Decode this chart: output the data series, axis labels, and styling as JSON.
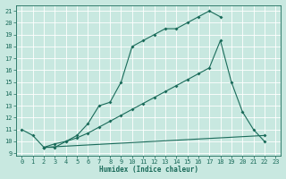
{
  "background_color": "#c8e8e0",
  "grid_color": "#b0d8d0",
  "line_color": "#1a6b5a",
  "xlabel": "Humidex (Indice chaleur)",
  "xlim": [
    -0.5,
    23.5
  ],
  "ylim": [
    8.8,
    21.5
  ],
  "yticks": [
    9,
    10,
    11,
    12,
    13,
    14,
    15,
    16,
    17,
    18,
    19,
    20,
    21
  ],
  "xticks": [
    0,
    1,
    2,
    3,
    4,
    5,
    6,
    7,
    8,
    9,
    10,
    11,
    12,
    13,
    14,
    15,
    16,
    17,
    18,
    19,
    20,
    21,
    22,
    23
  ],
  "line1_x": [
    0,
    1,
    2,
    3,
    4,
    5,
    6,
    7,
    8,
    9,
    10,
    11,
    12,
    13,
    14,
    15,
    16,
    17,
    18
  ],
  "line1_y": [
    11,
    10.5,
    9.5,
    9.5,
    10,
    10.5,
    11.5,
    13,
    13.3,
    15,
    18,
    18.5,
    19,
    19.5,
    19.5,
    20,
    20.5,
    21,
    20.5
  ],
  "line2_x": [
    2,
    3,
    4,
    5,
    6,
    7,
    8,
    9,
    10,
    11,
    12,
    13,
    14,
    15,
    16,
    17,
    18,
    19,
    20,
    21,
    22
  ],
  "line2_y": [
    9.5,
    9.8,
    10,
    10.3,
    10.7,
    11.2,
    11.7,
    12.2,
    12.7,
    13.2,
    13.7,
    14.2,
    14.7,
    15.2,
    15.7,
    16.2,
    18.5,
    15,
    12.5,
    11,
    10
  ],
  "line3_x": [
    2,
    22
  ],
  "line3_y": [
    9.5,
    10.5
  ]
}
